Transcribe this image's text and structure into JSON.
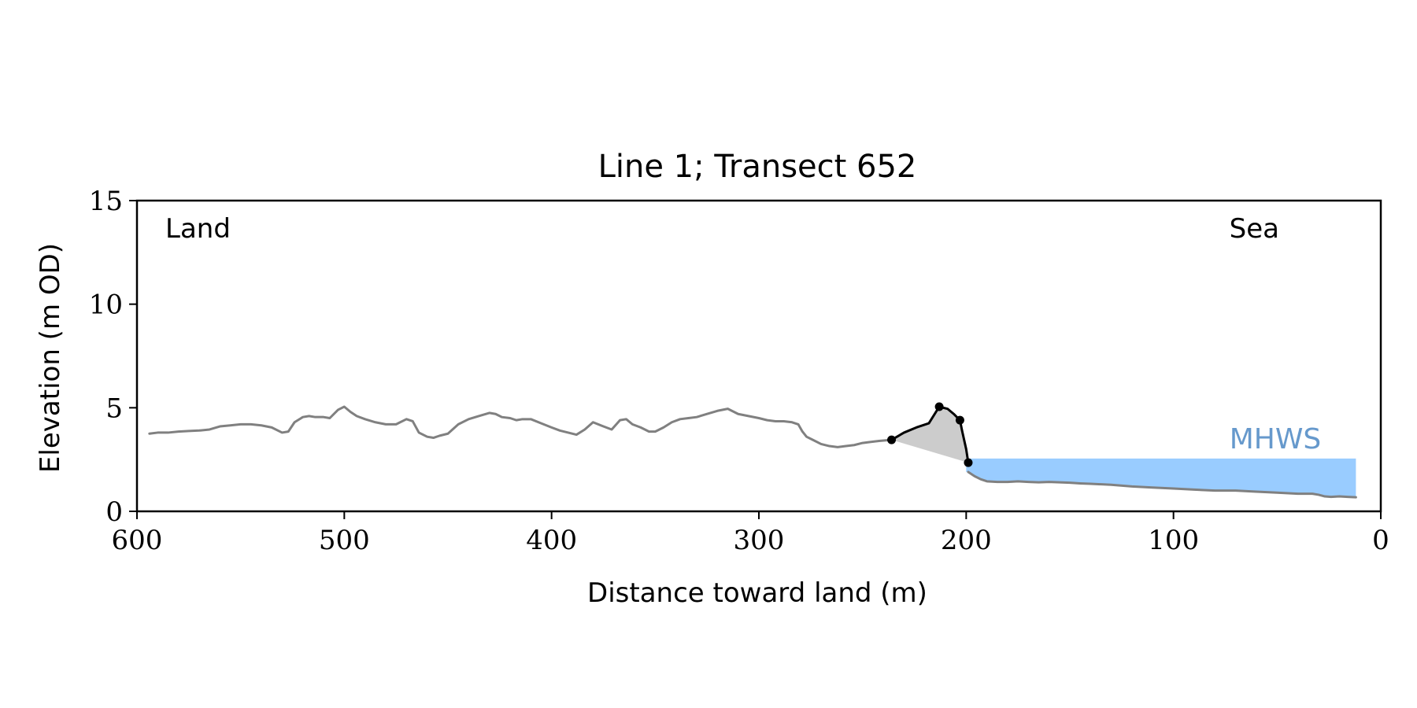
{
  "chart_data": {
    "type": "line",
    "title": "Line 1; Transect 652",
    "xlabel": "Distance toward land (m)",
    "ylabel": "Elevation (m OD)",
    "xlim": [
      600,
      0
    ],
    "ylim": [
      0,
      15
    ],
    "x_ticks": [
      600,
      500,
      400,
      300,
      200,
      100,
      0
    ],
    "y_ticks": [
      0,
      5,
      10,
      15
    ],
    "grid": false,
    "annotations": {
      "land": "Land",
      "sea": "Sea",
      "mhws": "MHWS"
    },
    "mhws_level": 2.55,
    "mhws_x_range": [
      200,
      12
    ],
    "colors": {
      "profile": "#808080",
      "dune": "#000000",
      "dune_fill": "#cccccc",
      "mhws_fill": "#99ccff",
      "mhws_text": "#6699cc",
      "axes": "#000000"
    },
    "series": [
      {
        "role": "profile",
        "x": [
          594,
          590,
          585,
          580,
          575,
          570,
          565,
          560,
          555,
          550,
          545,
          540,
          535,
          530,
          527,
          524,
          520,
          517,
          514,
          510,
          507,
          503,
          500,
          497,
          494,
          490,
          485,
          480,
          475,
          470,
          467,
          464,
          460,
          457,
          454,
          450,
          445,
          440,
          435,
          430,
          427,
          424,
          420,
          417,
          414,
          410,
          405,
          400,
          396,
          392,
          388,
          384,
          380,
          375,
          371,
          367,
          364,
          361,
          357,
          353,
          350,
          346,
          342,
          338,
          334,
          330,
          325,
          320,
          315,
          310,
          305,
          300,
          296,
          292,
          288,
          284,
          281,
          279,
          277,
          274,
          270,
          266,
          262,
          258,
          254,
          250,
          246,
          242,
          236
        ],
        "y": [
          3.75,
          3.8,
          3.8,
          3.85,
          3.88,
          3.9,
          3.95,
          4.1,
          4.15,
          4.2,
          4.2,
          4.15,
          4.05,
          3.8,
          3.85,
          4.3,
          4.55,
          4.6,
          4.55,
          4.55,
          4.5,
          4.9,
          5.05,
          4.8,
          4.6,
          4.45,
          4.3,
          4.2,
          4.2,
          4.45,
          4.35,
          3.8,
          3.6,
          3.55,
          3.65,
          3.75,
          4.2,
          4.45,
          4.6,
          4.75,
          4.7,
          4.55,
          4.5,
          4.4,
          4.45,
          4.45,
          4.25,
          4.05,
          3.9,
          3.8,
          3.7,
          3.95,
          4.3,
          4.1,
          3.95,
          4.4,
          4.45,
          4.2,
          4.05,
          3.85,
          3.85,
          4.05,
          4.3,
          4.45,
          4.5,
          4.55,
          4.7,
          4.85,
          4.95,
          4.7,
          4.6,
          4.5,
          4.4,
          4.35,
          4.35,
          4.3,
          4.2,
          3.85,
          3.6,
          3.45,
          3.25,
          3.15,
          3.1,
          3.15,
          3.2,
          3.3,
          3.35,
          3.4,
          3.45
        ]
      },
      {
        "role": "dune",
        "x": [
          236,
          230,
          224,
          218,
          213,
          209,
          206,
          203,
          202,
          200,
          199
        ],
        "y": [
          3.45,
          3.8,
          4.05,
          4.25,
          5.05,
          4.95,
          4.7,
          4.4,
          3.9,
          3.0,
          2.35
        ]
      },
      {
        "role": "beach",
        "x": [
          199,
          196,
          193,
          190,
          185,
          180,
          175,
          170,
          165,
          160,
          155,
          150,
          145,
          140,
          130,
          120,
          110,
          100,
          90,
          80,
          70,
          60,
          50,
          40,
          33,
          30,
          27,
          24,
          20,
          16,
          12
        ],
        "y": [
          1.9,
          1.7,
          1.55,
          1.45,
          1.42,
          1.42,
          1.45,
          1.42,
          1.4,
          1.42,
          1.4,
          1.38,
          1.35,
          1.33,
          1.28,
          1.2,
          1.15,
          1.1,
          1.05,
          1.0,
          1.0,
          0.95,
          0.9,
          0.85,
          0.85,
          0.8,
          0.72,
          0.7,
          0.72,
          0.7,
          0.68
        ]
      }
    ],
    "dune_markers": {
      "x": [
        236,
        213,
        203,
        199
      ],
      "y": [
        3.45,
        5.05,
        4.4,
        2.35
      ]
    }
  }
}
